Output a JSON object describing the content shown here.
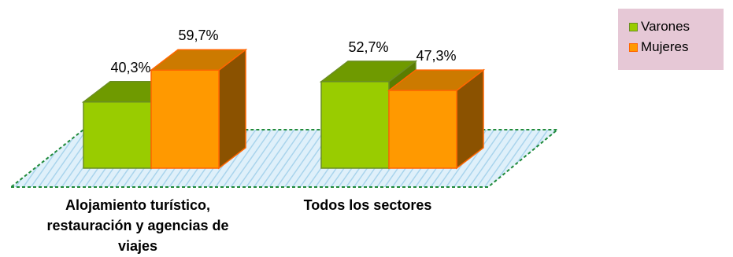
{
  "chart_data": {
    "type": "bar",
    "categories": [
      "Alojamiento turístico, restauración y agencias de viajes",
      "Todos los sectores"
    ],
    "category_lines": [
      [
        "Alojamiento turístico,",
        "restauración y agencias de",
        "viajes"
      ],
      [
        "Todos los sectores"
      ]
    ],
    "series": [
      {
        "name": "Varones",
        "values": [
          40.3,
          52.7
        ],
        "labels": [
          "40,3%",
          "52,7%"
        ],
        "color": "#99cc00",
        "top_color": "#6f9a00",
        "side_color": "#5a7d00",
        "edge_color": "#6b8e23"
      },
      {
        "name": "Mujeres",
        "values": [
          59.7,
          47.3
        ],
        "labels": [
          "59,7%",
          "47,3%"
        ],
        "color": "#ff9900",
        "top_color": "#cc7a00",
        "side_color": "#8b5200",
        "edge_color": "#ff6600"
      }
    ],
    "ylim": [
      0,
      70
    ],
    "grid": false,
    "legend_position": "top-right",
    "floor_color": "#cfe8f5",
    "floor_edge_color": "#1f8a3a"
  }
}
